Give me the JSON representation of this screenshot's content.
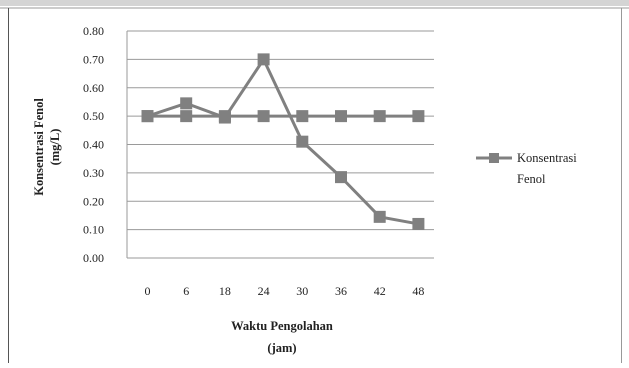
{
  "chart_data": {
    "type": "line",
    "title": "",
    "xlabel_lines": [
      "Waktu Pengolahan",
      "(jam)"
    ],
    "ylabel_lines": [
      "Konsentrasi Fenol",
      "(mg/L)"
    ],
    "categories": [
      "0",
      "6",
      "18",
      "24",
      "30",
      "36",
      "42",
      "48"
    ],
    "ylim": [
      0,
      0.8
    ],
    "yticks": [
      "0.00",
      "0.10",
      "0.20",
      "0.30",
      "0.40",
      "0.50",
      "0.60",
      "0.70",
      "0.80"
    ],
    "grid": true,
    "legend_position": "right",
    "series": [
      {
        "name": "Konsentrasi Fenol",
        "legend_lines": [
          "Konsentrasi",
          "Fenol"
        ],
        "values": [
          0.5,
          0.545,
          0.495,
          0.7,
          0.41,
          0.285,
          0.145,
          0.12
        ],
        "color": "#808080",
        "marker": "square"
      },
      {
        "values": [
          0.5,
          0.5,
          0.5,
          0.5,
          0.5,
          0.5,
          0.5,
          0.5
        ],
        "color": "#808080",
        "marker": "square"
      }
    ]
  }
}
